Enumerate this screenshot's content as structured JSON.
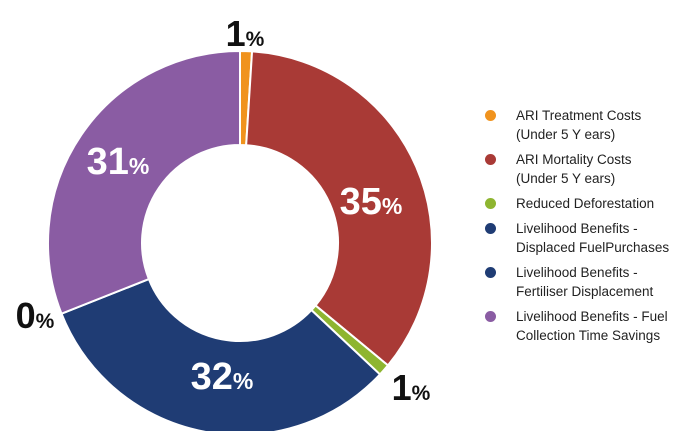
{
  "chart_data": {
    "type": "donut",
    "title": "",
    "series": [
      {
        "name": "ARI Treatment Costs\n(Under 5 Y ears)",
        "value": 1,
        "label": "1",
        "color": "#F0931E"
      },
      {
        "name": "ARI Mortality Costs\n(Under 5 Y ears)",
        "value": 35,
        "label": "35",
        "color": "#A93A36"
      },
      {
        "name": "Reduced Deforestation",
        "value": 1,
        "label": "1",
        "color": "#8EB530"
      },
      {
        "name": "Livelihood Benefits -\nDisplaced FuelPurchases",
        "value": 32,
        "label": "32",
        "color": "#1F3C74"
      },
      {
        "name": "Livelihood Benefits -\nFertiliser Displacement",
        "value": 0,
        "label": "0",
        "color": "#1F3C74"
      },
      {
        "name": "Livelihood Benefits - Fuel\nCollection Time Savings",
        "value": 31,
        "label": "31",
        "color": "#8A5CA3"
      }
    ],
    "percent_symbol": "%",
    "legend_position": "right"
  }
}
